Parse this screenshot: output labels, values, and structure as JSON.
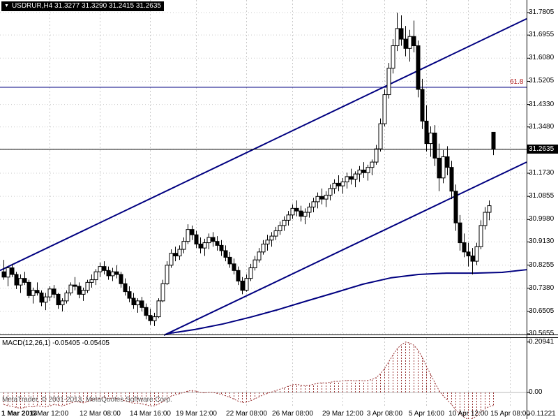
{
  "window": {
    "title": "USDRUR,H4 31.3277 31.3290 31.2415 31.2635",
    "title_arrow": "▼"
  },
  "footer": {
    "copyright": "MetaTrader, © 2001-2013, MetaQuotes Software Corp."
  },
  "chart_data": {
    "type": "candlestick",
    "symbol": "USDRUR",
    "timeframe": "H4",
    "ohlc_order": [
      "open",
      "high",
      "low",
      "close"
    ],
    "price_axis": {
      "labels": [
        "31.7805",
        "31.6955",
        "31.6080",
        "31.5205",
        "31.4330",
        "31.3480",
        "31.2635",
        "31.1730",
        "31.0855",
        "30.9980",
        "30.9130",
        "30.8255",
        "30.7380",
        "30.6505",
        "30.5655"
      ],
      "max": 31.7805,
      "min": 30.5655,
      "current": "31.2635",
      "current_value": 31.2635
    },
    "time_axis": {
      "labels": [
        {
          "text": "1 Mar 2013",
          "bar": 1,
          "bold": true
        },
        {
          "text": "6 Mar 12:00",
          "bar": 11
        },
        {
          "text": "12 Mar 08:00",
          "bar": 23
        },
        {
          "text": "14 Mar 16:00",
          "bar": 35
        },
        {
          "text": "19 Mar 12:00",
          "bar": 46
        },
        {
          "text": "22 Mar 08:00",
          "bar": 58
        },
        {
          "text": "26 Mar 08:00",
          "bar": 69
        },
        {
          "text": "29 Mar 12:00",
          "bar": 81
        },
        {
          "text": "3 Apr 08:00",
          "bar": 91
        },
        {
          "text": "5 Apr 16:00",
          "bar": 101
        },
        {
          "text": "10 Apr 12:00",
          "bar": 111
        },
        {
          "text": "15 Apr 08:00",
          "bar": 121
        }
      ]
    },
    "fib": {
      "label": "61.8",
      "price": 31.498
    },
    "trendlines": [
      {
        "name": "channel-upper-trendline",
        "points": [
          [
            0,
            30.805
          ],
          [
            755,
            31.757
          ]
        ]
      },
      {
        "name": "channel-lower-trendline",
        "points": [
          [
            235,
            30.56
          ],
          [
            755,
            31.215
          ]
        ]
      }
    ],
    "ma": [
      [
        240,
        30.566
      ],
      [
        280,
        30.582
      ],
      [
        320,
        30.603
      ],
      [
        360,
        30.629
      ],
      [
        400,
        30.658
      ],
      [
        440,
        30.69
      ],
      [
        480,
        30.721
      ],
      [
        520,
        30.753
      ],
      [
        560,
        30.777
      ],
      [
        600,
        30.79
      ],
      [
        640,
        30.795
      ],
      [
        680,
        30.795
      ],
      [
        720,
        30.798
      ],
      [
        755,
        30.808
      ]
    ],
    "candles": [
      [
        30.8,
        30.845,
        30.77,
        30.78
      ],
      [
        30.78,
        30.82,
        30.745,
        30.815
      ],
      [
        30.815,
        30.83,
        30.78,
        30.79
      ],
      [
        30.79,
        30.8,
        30.735,
        30.75
      ],
      [
        30.75,
        30.79,
        30.72,
        30.775
      ],
      [
        30.775,
        30.8,
        30.75,
        30.76
      ],
      [
        30.76,
        30.77,
        30.7,
        30.71
      ],
      [
        30.71,
        30.74,
        30.68,
        30.73
      ],
      [
        30.73,
        30.76,
        30.71,
        30.72
      ],
      [
        30.72,
        30.73,
        30.67,
        30.685
      ],
      [
        30.685,
        30.72,
        30.655,
        30.705
      ],
      [
        30.705,
        30.745,
        30.69,
        30.735
      ],
      [
        30.735,
        30.75,
        30.7,
        30.715
      ],
      [
        30.715,
        30.72,
        30.66,
        30.675
      ],
      [
        30.675,
        30.7,
        30.65,
        30.69
      ],
      [
        30.69,
        30.73,
        30.68,
        30.72
      ],
      [
        30.72,
        30.76,
        30.71,
        30.75
      ],
      [
        30.75,
        30.78,
        30.73,
        30.745
      ],
      [
        30.745,
        30.76,
        30.7,
        30.715
      ],
      [
        30.715,
        30.74,
        30.69,
        30.73
      ],
      [
        30.73,
        30.77,
        30.72,
        30.76
      ],
      [
        30.76,
        30.79,
        30.74,
        30.77
      ],
      [
        30.77,
        30.81,
        30.75,
        30.8
      ],
      [
        30.8,
        30.835,
        30.78,
        30.82
      ],
      [
        30.82,
        30.84,
        30.79,
        30.805
      ],
      [
        30.805,
        30.82,
        30.77,
        30.785
      ],
      [
        30.785,
        30.815,
        30.765,
        30.8
      ],
      [
        30.8,
        30.825,
        30.775,
        30.79
      ],
      [
        30.79,
        30.8,
        30.74,
        30.755
      ],
      [
        30.755,
        30.775,
        30.71,
        30.725
      ],
      [
        30.725,
        30.745,
        30.685,
        30.7
      ],
      [
        30.7,
        30.72,
        30.66,
        30.675
      ],
      [
        30.675,
        30.7,
        30.645,
        30.69
      ],
      [
        30.69,
        30.705,
        30.65,
        30.665
      ],
      [
        30.665,
        30.68,
        30.62,
        30.635
      ],
      [
        30.635,
        30.66,
        30.6,
        30.615
      ],
      [
        30.615,
        30.645,
        30.595,
        30.63
      ],
      [
        30.63,
        30.7,
        30.625,
        30.69
      ],
      [
        30.69,
        30.77,
        30.685,
        30.755
      ],
      [
        30.755,
        30.84,
        30.75,
        30.825
      ],
      [
        30.825,
        30.885,
        30.815,
        30.87
      ],
      [
        30.87,
        30.895,
        30.84,
        30.86
      ],
      [
        30.86,
        30.9,
        30.845,
        30.885
      ],
      [
        30.885,
        30.93,
        30.87,
        30.915
      ],
      [
        30.915,
        30.98,
        30.905,
        30.96
      ],
      [
        30.96,
        30.975,
        30.92,
        30.94
      ],
      [
        30.94,
        30.955,
        30.89,
        30.905
      ],
      [
        30.905,
        30.93,
        30.87,
        30.89
      ],
      [
        30.89,
        30.925,
        30.86,
        30.91
      ],
      [
        30.91,
        30.945,
        30.885,
        30.93
      ],
      [
        30.93,
        30.95,
        30.895,
        30.915
      ],
      [
        30.915,
        30.935,
        30.88,
        30.9
      ],
      [
        30.9,
        30.92,
        30.86,
        30.88
      ],
      [
        30.88,
        30.9,
        30.84,
        30.855
      ],
      [
        30.855,
        30.875,
        30.815,
        30.83
      ],
      [
        30.83,
        30.85,
        30.79,
        30.805
      ],
      [
        30.805,
        30.82,
        30.75,
        30.765
      ],
      [
        30.765,
        30.78,
        30.715,
        30.73
      ],
      [
        30.73,
        30.79,
        30.725,
        30.775
      ],
      [
        30.775,
        30.83,
        30.765,
        30.815
      ],
      [
        30.815,
        30.86,
        30.805,
        30.845
      ],
      [
        30.845,
        30.89,
        30.835,
        30.875
      ],
      [
        30.875,
        30.92,
        30.865,
        30.905
      ],
      [
        30.905,
        30.94,
        30.88,
        30.92
      ],
      [
        30.92,
        30.95,
        30.895,
        30.935
      ],
      [
        30.935,
        30.97,
        30.92,
        30.955
      ],
      [
        30.955,
        30.99,
        30.94,
        30.975
      ],
      [
        30.975,
        31.01,
        30.955,
        30.995
      ],
      [
        30.995,
        31.03,
        30.975,
        31.015
      ],
      [
        31.015,
        31.055,
        31.0,
        31.04
      ],
      [
        31.04,
        31.07,
        31.01,
        31.03
      ],
      [
        31.03,
        31.05,
        30.99,
        31.01
      ],
      [
        31.01,
        31.04,
        30.98,
        31.025
      ],
      [
        31.025,
        31.06,
        31.005,
        31.045
      ],
      [
        31.045,
        31.08,
        31.025,
        31.065
      ],
      [
        31.065,
        31.1,
        31.04,
        31.085
      ],
      [
        31.085,
        31.115,
        31.055,
        31.075
      ],
      [
        31.075,
        31.105,
        31.045,
        31.09
      ],
      [
        31.09,
        31.13,
        31.07,
        31.115
      ],
      [
        31.115,
        31.15,
        31.095,
        31.135
      ],
      [
        31.135,
        31.165,
        31.105,
        31.125
      ],
      [
        31.125,
        31.155,
        31.095,
        31.14
      ],
      [
        31.14,
        31.175,
        31.115,
        31.16
      ],
      [
        31.16,
        31.19,
        31.13,
        31.15
      ],
      [
        31.15,
        31.18,
        31.12,
        31.17
      ],
      [
        31.17,
        31.2,
        31.14,
        31.185
      ],
      [
        31.185,
        31.215,
        31.155,
        31.175
      ],
      [
        31.175,
        31.205,
        31.145,
        31.195
      ],
      [
        31.195,
        31.225,
        31.165,
        31.215
      ],
      [
        31.215,
        31.28,
        31.205,
        31.265
      ],
      [
        31.265,
        31.38,
        31.255,
        31.36
      ],
      [
        31.36,
        31.49,
        31.35,
        31.47
      ],
      [
        31.47,
        31.59,
        31.455,
        31.57
      ],
      [
        31.57,
        31.68,
        31.55,
        31.655
      ],
      [
        31.655,
        31.78,
        31.635,
        31.72
      ],
      [
        31.72,
        31.77,
        31.655,
        31.68
      ],
      [
        31.68,
        31.73,
        31.615,
        31.645
      ],
      [
        31.645,
        31.715,
        31.595,
        31.69
      ],
      [
        31.69,
        31.75,
        31.63,
        31.655
      ],
      [
        31.655,
        31.675,
        31.46,
        31.49
      ],
      [
        31.49,
        31.53,
        31.34,
        31.37
      ],
      [
        31.37,
        31.43,
        31.255,
        31.285
      ],
      [
        31.285,
        31.35,
        31.235,
        31.325
      ],
      [
        31.325,
        31.355,
        31.2,
        31.23
      ],
      [
        31.23,
        31.285,
        31.105,
        31.155
      ],
      [
        31.155,
        31.26,
        31.135,
        31.235
      ],
      [
        31.235,
        31.275,
        31.165,
        31.195
      ],
      [
        31.195,
        31.22,
        31.075,
        31.105
      ],
      [
        31.105,
        31.13,
        30.955,
        30.985
      ],
      [
        30.985,
        31.015,
        30.88,
        30.91
      ],
      [
        30.91,
        30.945,
        30.855,
        30.875
      ],
      [
        30.875,
        30.91,
        30.82,
        30.86
      ],
      [
        30.86,
        30.89,
        30.79,
        30.84
      ],
      [
        30.84,
        30.91,
        30.825,
        30.895
      ],
      [
        30.895,
        30.995,
        30.885,
        30.975
      ],
      [
        30.975,
        31.045,
        30.96,
        31.025
      ],
      [
        31.025,
        31.07,
        30.995,
        31.05
      ],
      [
        31.3277,
        31.329,
        31.2415,
        31.2635
      ]
    ],
    "macd": {
      "label": "MACD(12,26,1) -0.05405 -0.05405",
      "axis_labels": [
        "0.20941",
        "0.00",
        "-0.11221"
      ],
      "max": 0.20941,
      "min": -0.11221,
      "current": -0.05405,
      "values": [
        -0.05,
        -0.055,
        -0.058,
        -0.062,
        -0.066,
        -0.062,
        -0.058,
        -0.06,
        -0.055,
        -0.058,
        -0.06,
        -0.056,
        -0.05,
        -0.053,
        -0.056,
        -0.05,
        -0.044,
        -0.038,
        -0.04,
        -0.043,
        -0.038,
        -0.033,
        -0.028,
        -0.024,
        -0.022,
        -0.025,
        -0.023,
        -0.026,
        -0.03,
        -0.035,
        -0.04,
        -0.045,
        -0.044,
        -0.047,
        -0.052,
        -0.056,
        -0.055,
        -0.048,
        -0.038,
        -0.026,
        -0.015,
        -0.01,
        -0.005,
        0.0,
        0.006,
        0.008,
        0.005,
        0.0,
        -0.002,
        0.001,
        0.0,
        -0.004,
        -0.008,
        -0.014,
        -0.02,
        -0.028,
        -0.036,
        -0.042,
        -0.04,
        -0.034,
        -0.026,
        -0.018,
        -0.01,
        -0.004,
        0.002,
        0.008,
        0.014,
        0.02,
        0.026,
        0.032,
        0.034,
        0.03,
        0.028,
        0.03,
        0.034,
        0.038,
        0.04,
        0.04,
        0.042,
        0.046,
        0.046,
        0.048,
        0.05,
        0.05,
        0.048,
        0.05,
        0.048,
        0.05,
        0.054,
        0.062,
        0.078,
        0.1,
        0.128,
        0.156,
        0.182,
        0.198,
        0.2094,
        0.205,
        0.196,
        0.175,
        0.145,
        0.108,
        0.075,
        0.04,
        0.008,
        -0.015,
        -0.032,
        -0.05,
        -0.072,
        -0.09,
        -0.103,
        -0.1122,
        -0.108,
        -0.098,
        -0.082,
        -0.068,
        -0.058,
        -0.05405
      ]
    },
    "colors": {
      "background": "#ffffff",
      "grid": "#c9c9c9",
      "candle_up_fill": "#ffffff",
      "candle_down_fill": "#000000",
      "candle_outline": "#000000",
      "trendline": "#000080",
      "ma": "#000080",
      "macd": "#993333",
      "fib_label": "#b22222",
      "axis_text": "#000000",
      "separator": "#000000",
      "tag_bg": "#000000",
      "tag_text": "#ffffff"
    }
  }
}
